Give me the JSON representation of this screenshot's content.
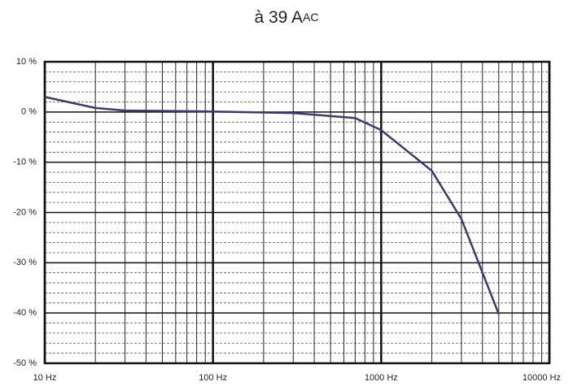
{
  "chart_data": {
    "type": "line",
    "title": "à 39 A",
    "title_subscript": "AC",
    "x": [
      10,
      20,
      30,
      100,
      300,
      700,
      1000,
      2000,
      3000,
      5000
    ],
    "series": [
      {
        "color": "#3c3a6e",
        "values": [
          3,
          0.8,
          0.3,
          0.1,
          -0.2,
          -1.2,
          -3.6,
          -11.7,
          -21.3,
          -40.2
        ]
      }
    ],
    "xscale": "log",
    "xlim": [
      10,
      10000
    ],
    "xticks": [
      {
        "value": 10,
        "label": "10 Hz"
      },
      {
        "value": 100,
        "label": "100 Hz"
      },
      {
        "value": 1000,
        "label": "1000 Hz"
      },
      {
        "value": 10000,
        "label": "10000 Hz"
      }
    ],
    "x_minor_ticks": [
      20,
      30,
      40,
      50,
      60,
      70,
      80,
      90,
      200,
      300,
      400,
      500,
      600,
      700,
      800,
      900,
      2000,
      3000,
      4000,
      5000,
      6000,
      7000,
      8000,
      9000
    ],
    "ylim": [
      -50,
      10
    ],
    "yticks": [
      {
        "value": 10,
        "label": "10 %"
      },
      {
        "value": 0,
        "label": "0 %"
      },
      {
        "value": -10,
        "label": "-10 %"
      },
      {
        "value": -20,
        "label": "-20 %"
      },
      {
        "value": -30,
        "label": "-30 %"
      },
      {
        "value": -40,
        "label": "-40 %"
      },
      {
        "value": -50,
        "label": "-50 %"
      }
    ],
    "y_minor_ticks": [
      8,
      6,
      4,
      2,
      -2,
      -4,
      -6,
      -8,
      -12,
      -14,
      -16,
      -18,
      -22,
      -24,
      -26,
      -28,
      -32,
      -34,
      -36,
      -38,
      -42,
      -44,
      -46,
      -48
    ],
    "grid": true
  }
}
